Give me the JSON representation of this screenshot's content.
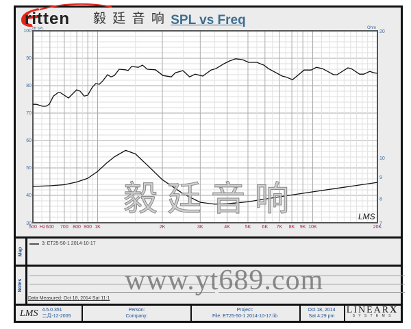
{
  "brand": {
    "name": "ritten",
    "logo_letter": "E",
    "cn_name": "毅 廷 音 响",
    "accent": "#e0251b"
  },
  "watermark": {
    "cn": "毅廷音响",
    "url": "www.yt689.com"
  },
  "chart_data": {
    "type": "line",
    "title": "SPL vs Freq",
    "x_scale": "log",
    "xlim": [
      500,
      20000
    ],
    "x_ticks": [
      {
        "v": 500,
        "label": "500"
      },
      {
        "v": 600,
        "label": "600"
      },
      {
        "v": 700,
        "label": "700"
      },
      {
        "v": 800,
        "label": "800"
      },
      {
        "v": 900,
        "label": "900"
      },
      {
        "v": 1000,
        "label": "1K"
      },
      {
        "v": 2000,
        "label": "2K"
      },
      {
        "v": 3000,
        "label": "3K"
      },
      {
        "v": 4000,
        "label": "4K"
      },
      {
        "v": 5000,
        "label": "5K"
      },
      {
        "v": 6000,
        "label": "6K"
      },
      {
        "v": 7000,
        "label": "7K"
      },
      {
        "v": 8000,
        "label": "8K"
      },
      {
        "v": 9000,
        "label": "9K"
      },
      {
        "v": 10000,
        "label": "10K"
      },
      {
        "v": 20000,
        "label": "20K"
      }
    ],
    "x_unit": "Hz",
    "ylabel_left": "dB SPL",
    "ylim_left": [
      30,
      100
    ],
    "y_ticks_left": [
      30,
      40,
      50,
      60,
      70,
      80,
      90,
      100
    ],
    "ylabel_right": "Ohm",
    "y_scale_right": "log",
    "ylim_right": [
      7,
      20
    ],
    "y_ticks_right": [
      7,
      8,
      9,
      10,
      20
    ],
    "grid": true,
    "series": [
      {
        "axis": "left",
        "color": "#111111",
        "points": [
          [
            500,
            73.2
          ],
          [
            519,
            73.2
          ],
          [
            554,
            72.5
          ],
          [
            575,
            72.5
          ],
          [
            596,
            73.2
          ],
          [
            623,
            76.2
          ],
          [
            656,
            77.5
          ],
          [
            670,
            77.5
          ],
          [
            732,
            75.5
          ],
          [
            799,
            78.5
          ],
          [
            829,
            78
          ],
          [
            866,
            76.2
          ],
          [
            899,
            76.5
          ],
          [
            946,
            79.5
          ],
          [
            982,
            80.8
          ],
          [
            1018,
            80.5
          ],
          [
            1056,
            81.7
          ],
          [
            1112,
            84
          ],
          [
            1154,
            83.2
          ],
          [
            1197,
            83.7
          ],
          [
            1260,
            86
          ],
          [
            1346,
            85.8
          ],
          [
            1386,
            85.5
          ],
          [
            1437,
            87
          ],
          [
            1547,
            86.7
          ],
          [
            1616,
            87.5
          ],
          [
            1702,
            86
          ],
          [
            1858,
            85.8
          ],
          [
            2013,
            83.7
          ],
          [
            2199,
            83.2
          ],
          [
            2298,
            84.7
          ],
          [
            2491,
            85.5
          ],
          [
            2680,
            83.2
          ],
          [
            2842,
            84.2
          ],
          [
            3082,
            83.5
          ],
          [
            3366,
            85.7
          ],
          [
            3544,
            86.2
          ],
          [
            3869,
            88
          ],
          [
            4103,
            89
          ],
          [
            4383,
            89.8
          ],
          [
            4716,
            89.5
          ],
          [
            5037,
            88.5
          ],
          [
            5501,
            88.5
          ],
          [
            5923,
            87.5
          ],
          [
            6232,
            86.2
          ],
          [
            7218,
            83.5
          ],
          [
            7484,
            83.2
          ],
          [
            8060,
            82.2
          ],
          [
            9126,
            85.7
          ],
          [
            9824,
            85.7
          ],
          [
            10415,
            86.7
          ],
          [
            11123,
            86.2
          ],
          [
            12512,
            84
          ],
          [
            12975,
            84
          ],
          [
            14594,
            86.5
          ],
          [
            15130,
            86.2
          ],
          [
            16521,
            84.2
          ],
          [
            17264,
            84.2
          ],
          [
            18443,
            85.2
          ],
          [
            19270,
            84.7
          ],
          [
            20000,
            84.5
          ]
        ]
      },
      {
        "axis": "right",
        "color": "#111111",
        "points": [
          [
            500,
            8.54
          ],
          [
            600,
            8.57
          ],
          [
            700,
            8.62
          ],
          [
            800,
            8.75
          ],
          [
            900,
            8.93
          ],
          [
            1000,
            9.27
          ],
          [
            1100,
            9.7
          ],
          [
            1200,
            10.05
          ],
          [
            1350,
            10.4
          ],
          [
            1500,
            10.2
          ],
          [
            1700,
            9.6
          ],
          [
            2000,
            8.86
          ],
          [
            2500,
            8.2
          ],
          [
            3000,
            7.83
          ],
          [
            3500,
            7.75
          ],
          [
            4000,
            7.77
          ],
          [
            5000,
            7.85
          ],
          [
            7000,
            8.07
          ],
          [
            10000,
            8.29
          ],
          [
            14000,
            8.5
          ],
          [
            20000,
            8.73
          ]
        ]
      }
    ]
  },
  "map": {
    "label": "Map",
    "legend": "3: ET25-50-1    2014-10-17"
  },
  "notes": {
    "label": "Notes",
    "measured": "Data Measured: Oct 18, 2014  Sat 11:1"
  },
  "footer": {
    "lms": "LMS",
    "version": "4.5.0.351",
    "build_date": "二月-12-2005",
    "person": "Person:",
    "company": "Company:",
    "project": "Project:",
    "file": "File: ET25-50-1   2014-10-17.lib",
    "date": "Oct 18, 2014",
    "time": "Sat  4:29 pm",
    "vendor": "LINEAR",
    "vendor_x": "X",
    "vendor_sub": "S Y S T E M S"
  },
  "chart_stamp": "LMS"
}
